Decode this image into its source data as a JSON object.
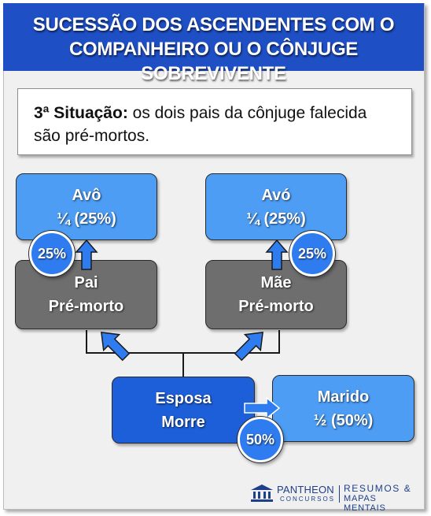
{
  "header": {
    "title_line1": "SUCESSÃO DOS ASCENDENTES COM O",
    "title_line2": "COMPANHEIRO OU O CÔNJUGE SOBREVIVENTE"
  },
  "note": {
    "label": "3ª Situação:",
    "text": "os dois pais da cônjuge falecida são pré-mortos."
  },
  "nodes": {
    "avo_left": {
      "name": "Avô",
      "share": "¼ (25%)",
      "badge": "25%"
    },
    "avo_right": {
      "name": "Avó",
      "share": "¼ (25%)",
      "badge": "25%"
    },
    "pai": {
      "name": "Pai",
      "status": "Pré-morto"
    },
    "mae": {
      "name": "Mãe",
      "status": "Pré-morto"
    },
    "esposa": {
      "name": "Esposa",
      "status": "Morre"
    },
    "marido": {
      "name": "Marido",
      "share": "½ (50%)",
      "badge": "50%"
    }
  },
  "footer": {
    "brand": "PANTHEON",
    "brand_sub": "CONCURSOS",
    "tagline1": "RESUMOS &",
    "tagline2": "MAPAS MENTAIS"
  },
  "colors": {
    "header": "#1e4fc4",
    "light_box": "#4d9df5",
    "gray_box": "#6e6e6e",
    "dark_box": "#1d5fd8",
    "badge": "#2f7cf0"
  }
}
